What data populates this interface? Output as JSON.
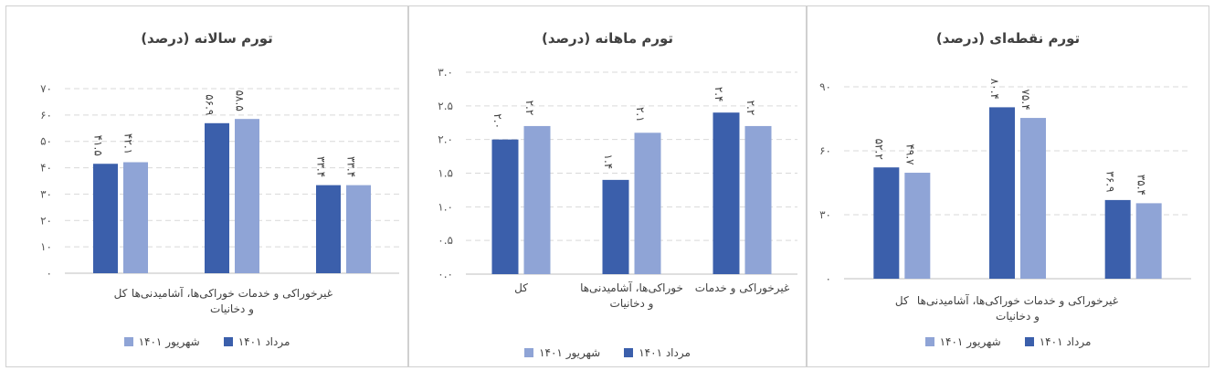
{
  "colors": {
    "series1": "#3b5fab",
    "series2": "#8fa4d6"
  },
  "chart_data": [
    {
      "type": "bar",
      "title": "تورم سالانه (درصد)",
      "categories": [
        "کل",
        "خوراکی‌ها، آشامیدنی‌ها و دخانیات",
        "غیرخوراکی و خدمات"
      ],
      "category_lines": [
        [
          "کل"
        ],
        [
          "غیرخوراکی و خدمات  خوراکی‌ها، آشامیدنی‌ها",
          "و دخانیات"
        ],
        []
      ],
      "series": [
        {
          "name": "مرداد ۱۴۰۱",
          "values": [
            41.5,
            56.9,
            33.4
          ],
          "labels": [
            "۴۱.۵",
            "۵۶.۹",
            "۳۳.۴"
          ]
        },
        {
          "name": "شهریور ۱۴۰۱",
          "values": [
            42.1,
            58.5,
            33.4
          ],
          "labels": [
            "۴۲.۱",
            "۵۸.۵",
            "۳۳.۴"
          ]
        }
      ],
      "ylim": [
        0,
        70
      ],
      "yticks": [
        0,
        10,
        20,
        30,
        40,
        50,
        60,
        70
      ],
      "ytick_labels": [
        "۰",
        "۱۰",
        "۲۰",
        "۳۰",
        "۴۰",
        "۵۰",
        "۶۰",
        "۷۰"
      ],
      "grid": true,
      "legend": "bottom"
    },
    {
      "type": "bar",
      "title": "تورم ماهانه (درصد)",
      "categories": [
        "کل",
        "خوراکی‌ها، آشامیدنی‌ها و دخانیات",
        "غیرخوراکی و خدمات"
      ],
      "category_lines": [
        [
          "کل"
        ],
        [
          "خوراکی‌ها، آشامیدنی‌ها",
          "و دخانیات"
        ],
        [
          "غیرخوراکی و خدمات"
        ]
      ],
      "series": [
        {
          "name": "مرداد ۱۴۰۱",
          "values": [
            2.0,
            1.4,
            2.4
          ],
          "labels": [
            "۲.۰",
            "۱.۴",
            "۲.۴"
          ]
        },
        {
          "name": "شهریور ۱۴۰۱",
          "values": [
            2.2,
            2.1,
            2.2
          ],
          "labels": [
            "۲.۲",
            "۲.۱",
            "۲.۲"
          ]
        }
      ],
      "ylim": [
        0,
        3.0
      ],
      "yticks": [
        0,
        0.5,
        1.0,
        1.5,
        2.0,
        2.5,
        3.0
      ],
      "ytick_labels": [
        "۰.۰",
        "۰.۵",
        "۱.۰",
        "۱.۵",
        "۲.۰",
        "۲.۵",
        "۳.۰"
      ],
      "grid": true,
      "legend": "bottom"
    },
    {
      "type": "bar",
      "title": "تورم نقطه‌ای (درصد)",
      "categories": [
        "کل",
        "خوراکی‌ها، آشامیدنی‌ها و دخانیات",
        "غیرخوراکی و خدمات"
      ],
      "category_lines": [
        [
          "کل"
        ],
        [
          "غیرخوراکی و خدمات  خوراکی‌ها، آشامیدنی‌ها",
          "و دخانیات"
        ],
        []
      ],
      "series": [
        {
          "name": "مرداد ۱۴۰۱",
          "values": [
            52.2,
            80.4,
            36.9
          ],
          "labels": [
            "۵۲.۲",
            "۸۰.۴",
            "۳۶.۹"
          ]
        },
        {
          "name": "شهریور ۱۴۰۱",
          "values": [
            49.7,
            75.4,
            35.4
          ],
          "labels": [
            "۴۹.۷",
            "۷۵.۴",
            "۳۵.۴"
          ]
        }
      ],
      "ylim": [
        0,
        90
      ],
      "yticks": [
        0,
        30,
        60,
        90
      ],
      "ytick_labels": [
        "۰",
        "۳۰",
        "۶۰",
        "۹۰"
      ],
      "grid": true,
      "legend": "bottom"
    }
  ]
}
